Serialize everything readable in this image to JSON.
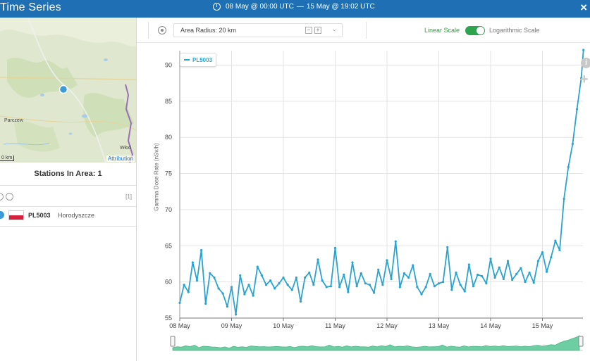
{
  "title_bar": {
    "title": "Time Series",
    "range_start": "08 May @ 00:00 UTC",
    "range_sep": "—",
    "range_end": "15 May @ 19:02 UTC",
    "close_icon": "close-icon"
  },
  "map": {
    "place_labels": [
      "Parczew",
      "Włod"
    ],
    "scale_text": "0 km",
    "attribution": "Attribution"
  },
  "stations": {
    "title": "Stations In Area: 1",
    "count_badge": "[1]",
    "list": [
      {
        "code": "PL5003",
        "name": "Horodyszcze",
        "flag": "poland"
      }
    ]
  },
  "toolbar": {
    "radius_label": "Area Radius: 20 km",
    "minus_label": "−",
    "plus_label": "+",
    "scale_linear": "Linear Scale",
    "scale_log": "Logarithmic Scale",
    "scale_mode": "linear"
  },
  "colors": {
    "title_bar": "#1f6fb5",
    "series": "#2aa4cf",
    "navigator_fill": "#5ec89a",
    "toggle_on": "#2ea44f"
  },
  "chart_data": {
    "type": "line",
    "ylabel": "Gamma Dose Rate (nSv/h)",
    "xlabel": "",
    "ylim": [
      55,
      92
    ],
    "y_ticks": [
      55,
      60,
      65,
      70,
      75,
      80,
      85,
      90
    ],
    "x_ticks": [
      "08 May",
      "09 May",
      "10 May",
      "11 May",
      "12 May",
      "13 May",
      "14 May",
      "15 May"
    ],
    "grid": true,
    "legend": "top-left",
    "series": [
      {
        "name": "PL5003",
        "x_days": [
          0,
          0.083,
          0.167,
          0.25,
          0.333,
          0.417,
          0.5,
          0.583,
          0.667,
          0.75,
          0.833,
          0.917,
          1.0,
          1.083,
          1.167,
          1.25,
          1.333,
          1.417,
          1.5,
          1.583,
          1.667,
          1.75,
          1.833,
          1.917,
          2.0,
          2.083,
          2.167,
          2.25,
          2.333,
          2.417,
          2.5,
          2.583,
          2.667,
          2.75,
          2.833,
          2.917,
          3.0,
          3.083,
          3.167,
          3.25,
          3.333,
          3.417,
          3.5,
          3.583,
          3.667,
          3.75,
          3.833,
          3.917,
          4.0,
          4.083,
          4.167,
          4.25,
          4.333,
          4.417,
          4.5,
          4.583,
          4.667,
          4.75,
          4.833,
          4.917,
          5.0,
          5.083,
          5.167,
          5.25,
          5.333,
          5.417,
          5.5,
          5.583,
          5.667,
          5.75,
          5.833,
          5.917,
          6.0,
          6.083,
          6.167,
          6.25,
          6.333,
          6.417,
          6.5,
          6.583,
          6.667,
          6.75,
          6.833,
          6.917,
          7.0,
          7.083,
          7.167,
          7.25,
          7.333,
          7.417,
          7.5,
          7.583,
          7.667,
          7.75,
          7.792
        ],
        "values": [
          57.1,
          59.6,
          58.6,
          62.7,
          60.2,
          64.4,
          57.0,
          61.2,
          60.6,
          59.1,
          58.4,
          56.6,
          59.3,
          55.5,
          60.9,
          58.3,
          59.6,
          58.1,
          62.1,
          60.9,
          59.6,
          60.2,
          59.1,
          59.8,
          60.6,
          59.6,
          58.9,
          60.6,
          57.3,
          60.6,
          61.3,
          59.6,
          63.1,
          60.2,
          59.3,
          59.4,
          64.7,
          59.3,
          61.0,
          58.6,
          62.7,
          59.4,
          61.2,
          59.8,
          59.6,
          58.5,
          61.7,
          59.6,
          63.0,
          60.4,
          65.6,
          59.3,
          61.2,
          60.6,
          62.3,
          59.3,
          58.3,
          59.3,
          61.1,
          59.4,
          59.8,
          60.0,
          64.8,
          58.9,
          61.3,
          59.6,
          58.7,
          62.4,
          59.4,
          61.0,
          60.8,
          59.8,
          63.2,
          60.6,
          62.0,
          60.4,
          62.9,
          60.3,
          61.1,
          61.9,
          60.0,
          61.3,
          59.9,
          62.9,
          64.1,
          61.4,
          63.4,
          65.7,
          64.4,
          71.5,
          75.9,
          79.1,
          83.9,
          88.2,
          92.1
        ]
      }
    ]
  }
}
